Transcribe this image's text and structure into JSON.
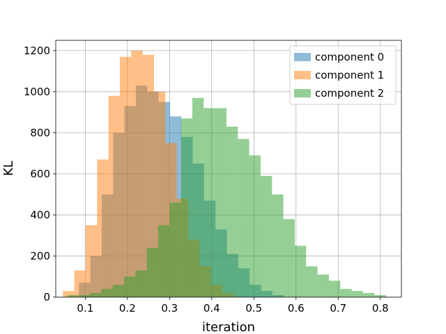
{
  "chart_data": {
    "type": "histogram",
    "title": "",
    "xlabel": "iteration",
    "ylabel": "KL",
    "xlim": [
      0.03,
      0.85
    ],
    "ylim": [
      0,
      1250
    ],
    "xticks": [
      0.1,
      0.2,
      0.3,
      0.4,
      0.5,
      0.6,
      0.7,
      0.8
    ],
    "yticks": [
      0,
      200,
      400,
      600,
      800,
      1000,
      1200
    ],
    "grid": true,
    "legend_position": "top-right",
    "series": [
      {
        "name": "component 0",
        "color": "#1f77b4",
        "opacity": 0.5,
        "bin_edges": [
          0.085,
          0.112,
          0.139,
          0.166,
          0.193,
          0.22,
          0.247,
          0.274,
          0.301,
          0.328,
          0.355,
          0.382,
          0.409,
          0.436,
          0.463,
          0.49,
          0.517,
          0.544,
          0.571
        ],
        "counts": [
          70,
          200,
          500,
          800,
          930,
          1030,
          1000,
          950,
          880,
          780,
          650,
          470,
          330,
          210,
          140,
          60,
          30,
          10
        ]
      },
      {
        "name": "component 1",
        "color": "#ff7f0e",
        "opacity": 0.5,
        "bin_edges": [
          0.047,
          0.074,
          0.101,
          0.128,
          0.155,
          0.182,
          0.209,
          0.236,
          0.263,
          0.29,
          0.317,
          0.344,
          0.371,
          0.398,
          0.425,
          0.452
        ],
        "counts": [
          30,
          130,
          350,
          670,
          980,
          1170,
          1200,
          1180,
          1000,
          750,
          480,
          280,
          150,
          60,
          20
        ]
      },
      {
        "name": "component 2",
        "color": "#2ca02c",
        "opacity": 0.5,
        "bin_edges": [
          0.057,
          0.084,
          0.111,
          0.138,
          0.165,
          0.192,
          0.219,
          0.246,
          0.273,
          0.3,
          0.327,
          0.354,
          0.381,
          0.408,
          0.435,
          0.462,
          0.489,
          0.516,
          0.543,
          0.57,
          0.597,
          0.624,
          0.651,
          0.678,
          0.705,
          0.732,
          0.759,
          0.786,
          0.813
        ],
        "counts": [
          10,
          10,
          20,
          40,
          60,
          100,
          130,
          240,
          350,
          460,
          870,
          970,
          920,
          920,
          830,
          770,
          690,
          590,
          500,
          380,
          250,
          150,
          110,
          80,
          40,
          30,
          20,
          10
        ]
      }
    ]
  }
}
